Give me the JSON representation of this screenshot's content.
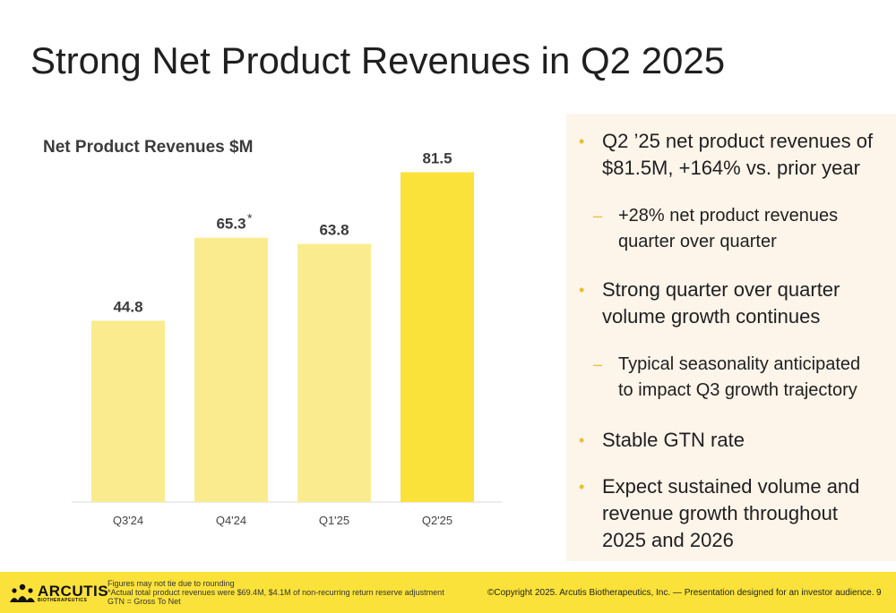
{
  "page": {
    "title": "Strong Net Product Revenues in Q2 2025"
  },
  "chart_data": {
    "type": "bar",
    "title": "Net Product Revenues $M",
    "categories": [
      "Q3'24",
      "Q4'24",
      "Q1'25",
      "Q2'25"
    ],
    "values": [
      44.8,
      65.3,
      63.8,
      81.5
    ],
    "value_labels": [
      "44.8",
      "65.3",
      "63.8",
      "81.5"
    ],
    "annotations": [
      "",
      "*",
      "",
      ""
    ],
    "xlabel": "",
    "ylabel": "",
    "ylim": [
      0,
      100
    ],
    "grid": false,
    "colors": [
      "#fbeb8f",
      "#fbeb8f",
      "#fbeb8f",
      "#fbe23a"
    ]
  },
  "bullets": [
    {
      "level": 1,
      "text_lines": [
        "Q2 ’25 net product revenues of",
        "$81.5M, +164% vs. prior year"
      ]
    },
    {
      "level": 2,
      "text_lines": [
        "+28% net product revenues",
        "quarter over quarter"
      ]
    },
    {
      "level": 1,
      "text_lines": [
        "Strong quarter over quarter",
        "volume growth continues"
      ]
    },
    {
      "level": 2,
      "text_lines": [
        "Typical seasonality anticipated",
        "to impact Q3 growth trajectory"
      ]
    },
    {
      "level": 1,
      "text_lines": [
        "Stable GTN rate"
      ]
    },
    {
      "level": 1,
      "text_lines": [
        "Expect sustained volume and",
        "revenue growth throughout",
        "2025 and 2026"
      ]
    }
  ],
  "bullet_marks": {
    "level1": "•",
    "level2": "–"
  },
  "footer": {
    "logo_text": "ARCUTIS",
    "logo_subtext": "BIOTHERAPEUTICS",
    "notes": [
      "Figures may not tie due to rounding",
      "*Actual total product revenues were $69.4M, $4.1M of non-recurring return reserve adjustment",
      "GTN = Gross To Net"
    ],
    "copyright": "©Copyright 2025. Arcutis Biotherapeutics, Inc. —  Presentation designed for an investor audience.",
    "page_number": "9"
  },
  "colors": {
    "accent": "#fbe23a",
    "light_bar": "#fbeb8f",
    "panel": "#fdf4ea"
  }
}
